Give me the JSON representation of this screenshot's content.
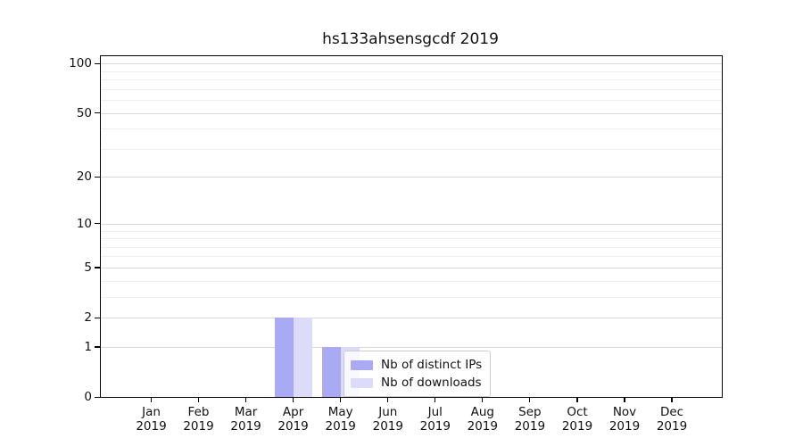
{
  "chart_data": {
    "type": "bar",
    "title": "hs133ahsensgcdf 2019",
    "categories": [
      "Jan",
      "Feb",
      "Mar",
      "Apr",
      "May",
      "Jun",
      "Jul",
      "Aug",
      "Sep",
      "Oct",
      "Nov",
      "Dec"
    ],
    "category_year": "2019",
    "series": [
      {
        "name": "Nb of distinct IPs",
        "color": "#a9a9f4",
        "values": [
          0,
          0,
          0,
          2,
          1,
          0,
          0,
          0,
          0,
          0,
          0,
          0
        ]
      },
      {
        "name": "Nb of downloads",
        "color": "#dcdcfa",
        "values": [
          0,
          0,
          0,
          2,
          1,
          0,
          0,
          0,
          0,
          0,
          0,
          0
        ]
      }
    ],
    "xlabel": "",
    "ylabel": "",
    "yscale": "log1p",
    "ylim": [
      0,
      111
    ],
    "y_major_ticks": [
      0,
      1,
      2,
      5,
      10,
      20,
      50,
      100
    ],
    "y_minor_gridlines": [
      3,
      4,
      6,
      7,
      8,
      9,
      30,
      40,
      60,
      70,
      80,
      90
    ],
    "grid": "horizontal",
    "legend_position": "inside-lower-left-of-center"
  },
  "colors": {
    "grid_major": "#d8d8d8",
    "grid_minor": "#efefef",
    "axis": "#000000",
    "legend_border": "#cccccc"
  }
}
